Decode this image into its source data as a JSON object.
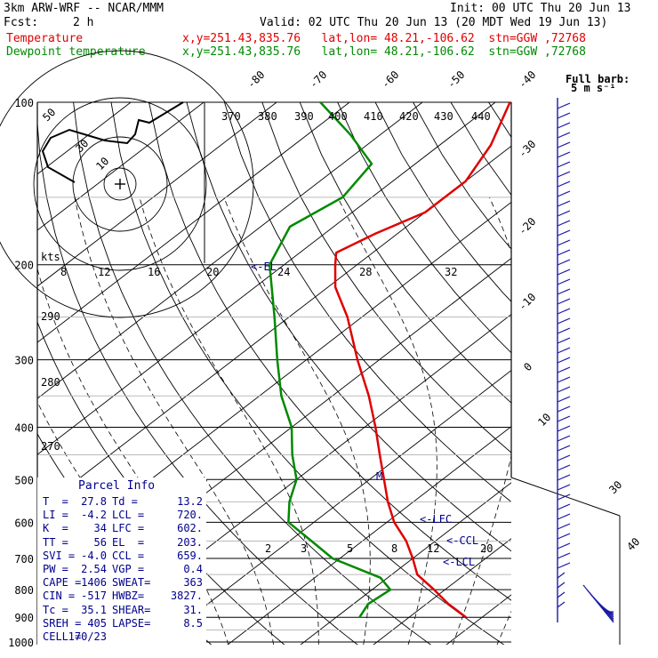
{
  "header": {
    "model": "3km ARW-WRF -- NCAR/MMM",
    "init": "Init: 00 UTC Thu 20 Jun 13",
    "fcst_label": "Fcst:",
    "fcst_value": "2 h",
    "valid": "Valid: 02 UTC Thu 20 Jun 13 (20 MDT Wed 19 Jun 13)"
  },
  "legend": [
    {
      "name": "Temperature",
      "info": "x,y=251.43,835.76   lat,lon= 48.21,-106.62  stn=GGW ,72768",
      "color": "#e00000"
    },
    {
      "name": "Dewpoint temperature",
      "info": "x,y=251.43,835.76   lat,lon= 48.21,-106.62  stn=GGW ,72768",
      "color": "#008a00"
    }
  ],
  "barb_label": {
    "line1": "Full barb:",
    "line2": "5 m s⁻¹"
  },
  "hodograph": {
    "kts_label": "kts",
    "ring_labels": [
      "50",
      "30",
      "10"
    ]
  },
  "chart_data": {
    "type": "skew-t",
    "pressure_ticks": [
      "100",
      "200",
      "300",
      "400",
      "500",
      "600",
      "700",
      "800",
      "900",
      "1000"
    ],
    "isotherm_labels_top": [
      "-80",
      "-70",
      "-60",
      "-50",
      "-40"
    ],
    "isotherm_labels_right": [
      "-30",
      "-20",
      "-10",
      "0",
      "10",
      "20",
      "30",
      "40"
    ],
    "theta_labels": [
      "370",
      "380",
      "390",
      "400",
      "410",
      "420",
      "430",
      "440"
    ],
    "mixing_ratio_labels_upper": [
      "8",
      "12",
      "16",
      "20",
      "24",
      "28",
      "32"
    ],
    "mixing_ratio_labels_lower": [
      "2",
      "3",
      "5",
      "8",
      "12",
      "20"
    ],
    "thetae_labels": [
      "290",
      "280",
      "270"
    ],
    "level_markers": [
      "<-EL",
      "M",
      "<-LFC",
      "<-CCL",
      "<-LCL"
    ],
    "temperature_series": [
      {
        "p": 900,
        "t": 27.8
      },
      {
        "p": 850,
        "t": 23.0
      },
      {
        "p": 800,
        "t": 18.5
      },
      {
        "p": 750,
        "t": 13.5
      },
      {
        "p": 700,
        "t": 10.0
      },
      {
        "p": 650,
        "t": 6.0
      },
      {
        "p": 600,
        "t": 1.0
      },
      {
        "p": 550,
        "t": -3.5
      },
      {
        "p": 500,
        "t": -8.0
      },
      {
        "p": 450,
        "t": -13.0
      },
      {
        "p": 400,
        "t": -18.5
      },
      {
        "p": 350,
        "t": -25.0
      },
      {
        "p": 300,
        "t": -33.0
      },
      {
        "p": 250,
        "t": -42.0
      },
      {
        "p": 220,
        "t": -49.0
      },
      {
        "p": 200,
        "t": -53.0
      },
      {
        "p": 190,
        "t": -55.0
      },
      {
        "p": 175,
        "t": -53.0
      },
      {
        "p": 160,
        "t": -50.0
      },
      {
        "p": 140,
        "t": -50.0
      },
      {
        "p": 120,
        "t": -53.0
      },
      {
        "p": 100,
        "t": -58.0
      }
    ],
    "dewpoint_series": [
      {
        "p": 900,
        "t": 13.2
      },
      {
        "p": 850,
        "t": 12.0
      },
      {
        "p": 800,
        "t": 12.5
      },
      {
        "p": 760,
        "t": 9.0
      },
      {
        "p": 700,
        "t": -1.0
      },
      {
        "p": 650,
        "t": -7.0
      },
      {
        "p": 600,
        "t": -13.5
      },
      {
        "p": 550,
        "t": -17.0
      },
      {
        "p": 500,
        "t": -20.0
      },
      {
        "p": 450,
        "t": -25.0
      },
      {
        "p": 400,
        "t": -30.0
      },
      {
        "p": 350,
        "t": -37.0
      },
      {
        "p": 300,
        "t": -44.0
      },
      {
        "p": 250,
        "t": -52.0
      },
      {
        "p": 200,
        "t": -62.0
      },
      {
        "p": 170,
        "t": -66.0
      },
      {
        "p": 150,
        "t": -64.0
      },
      {
        "p": 130,
        "t": -66.0
      },
      {
        "p": 115,
        "t": -74.0
      },
      {
        "p": 100,
        "t": -84.0
      }
    ]
  },
  "parcel_info": {
    "title": "Parcel Info",
    "rows": [
      [
        "T  =",
        "27.8",
        "Td =",
        "13.2"
      ],
      [
        "LI =",
        "-4.2",
        "LCL =",
        "720."
      ],
      [
        "K  =",
        "34",
        "LFC =",
        "602."
      ],
      [
        "TT =",
        "56",
        "EL  =",
        "203."
      ],
      [
        "SVI =",
        "-4.0",
        "CCL =",
        "659."
      ],
      [
        "PW =",
        "2.54",
        "VGP =",
        "0.4"
      ],
      [
        "CAPE =",
        "1406",
        "SWEAT=",
        "363"
      ],
      [
        "CIN =",
        "-517",
        "HWBZ=",
        "3827."
      ],
      [
        "Tc =",
        "35.1",
        "SHEAR=",
        "31."
      ],
      [
        "SREH =",
        "405",
        "LAPSE=",
        "8.5"
      ],
      [
        "CELL =",
        "170/23",
        "",
        ""
      ]
    ]
  }
}
